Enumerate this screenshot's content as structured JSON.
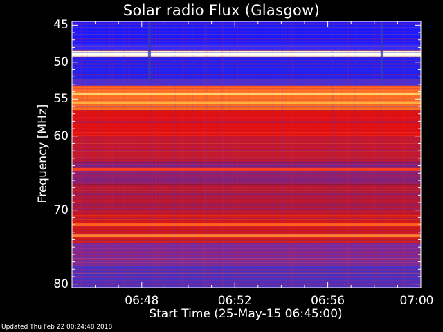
{
  "chart_data": {
    "type": "heatmap",
    "title": "Solar radio Flux (Glasgow)",
    "xlabel": "Start Time (25-May-15 06:45:00)",
    "ylabel": "Frequency [MHz]",
    "x_ticks": [
      "06:48",
      "06:52",
      "06:56",
      "07:00"
    ],
    "x_tick_minutes": [
      48,
      52,
      56,
      60
    ],
    "xlim_minutes": [
      45,
      60
    ],
    "y_ticks": [
      45,
      50,
      55,
      60,
      70,
      80
    ],
    "ylim_mhz": [
      44.5,
      80.5
    ],
    "bands": [
      {
        "f0": 44.5,
        "f1": 47.5,
        "color": "#1a1aff"
      },
      {
        "f0": 47.5,
        "f1": 48.5,
        "color": "#2d2dff"
      },
      {
        "f0": 48.5,
        "f1": 49.3,
        "color": "#fff6c8"
      },
      {
        "f0": 49.3,
        "f1": 52.2,
        "color": "#2020f0"
      },
      {
        "f0": 52.2,
        "f1": 53.2,
        "color": "#5030c8"
      },
      {
        "f0": 53.2,
        "f1": 56.5,
        "color": "#ff7020"
      },
      {
        "f0": 56.5,
        "f1": 60.0,
        "color": "#e01010"
      },
      {
        "f0": 60.0,
        "f1": 63.5,
        "color": "#c01830"
      },
      {
        "f0": 63.5,
        "f1": 66.5,
        "color": "#8a2070"
      },
      {
        "f0": 66.5,
        "f1": 70.5,
        "color": "#b01838"
      },
      {
        "f0": 70.5,
        "f1": 74.5,
        "color": "#d01818"
      },
      {
        "f0": 74.5,
        "f1": 77.5,
        "color": "#7a2a9a"
      },
      {
        "f0": 77.5,
        "f1": 80.5,
        "color": "#4830c0"
      }
    ],
    "bright_lines": [
      {
        "f": 48.9,
        "color": "#ffffff"
      },
      {
        "f": 54.3,
        "color": "#ffd070"
      },
      {
        "f": 55.5,
        "color": "#ffb040"
      },
      {
        "f": 64.5,
        "color": "#ff4020"
      },
      {
        "f": 72.0,
        "color": "#ff6020"
      },
      {
        "f": 73.5,
        "color": "#ff8030"
      }
    ],
    "colors": {
      "background": "#000000",
      "axis": "#ffffff"
    }
  },
  "footer": {
    "updated": "Updated Thu Feb 22 00:24:48 2018"
  }
}
